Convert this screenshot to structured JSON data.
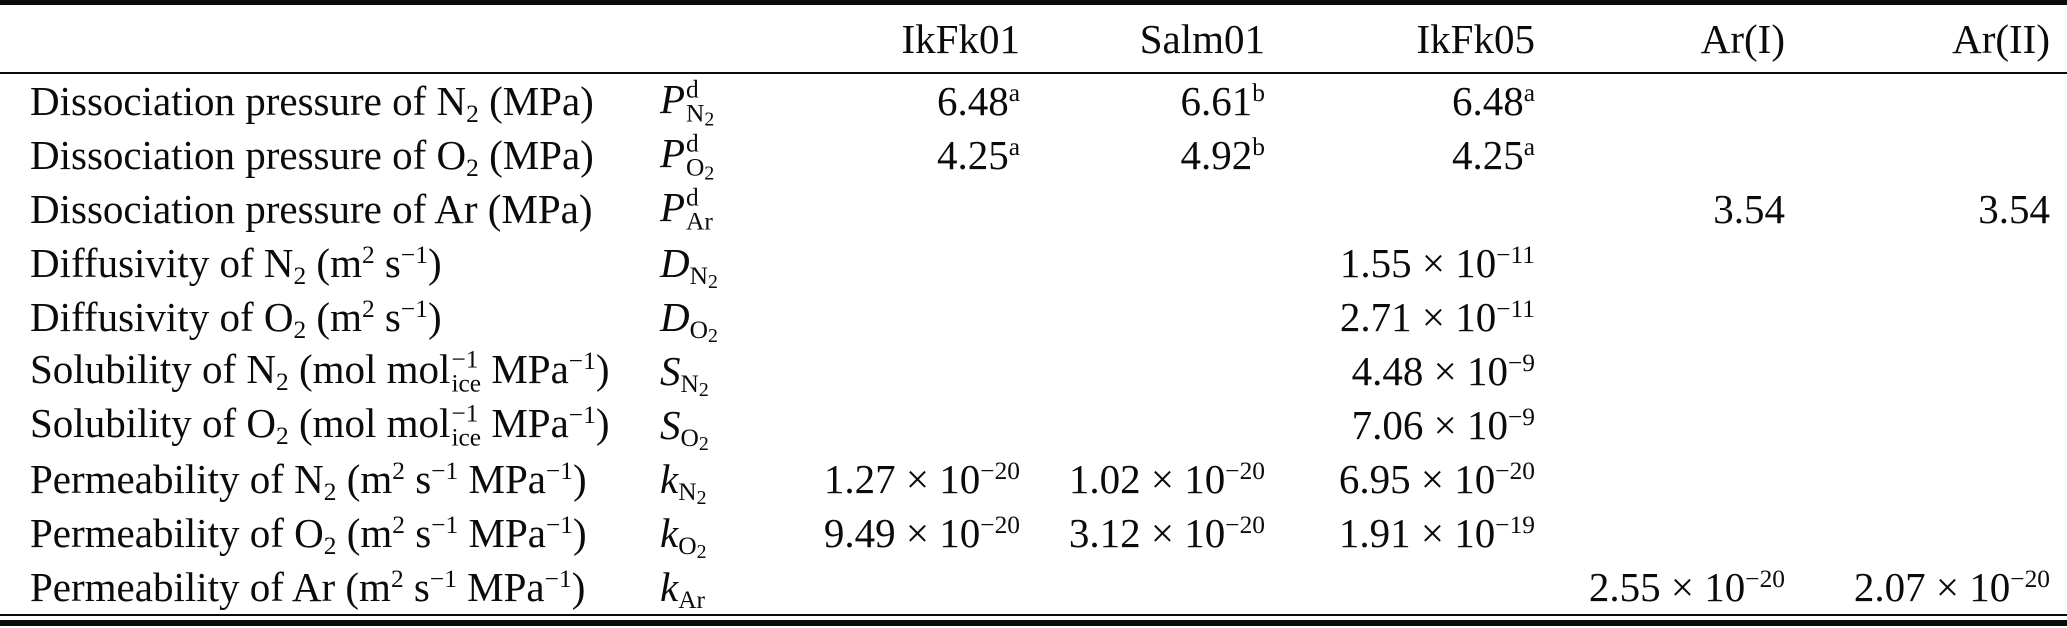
{
  "table": {
    "columns": [
      {
        "id": "parameter",
        "label": ""
      },
      {
        "id": "symbol",
        "label": ""
      },
      {
        "id": "IkFk01",
        "label": "IkFk01"
      },
      {
        "id": "Salm01",
        "label": "Salm01"
      },
      {
        "id": "IkFk05",
        "label": "IkFk05"
      },
      {
        "id": "ArI",
        "label": "Ar(I)"
      },
      {
        "id": "ArII",
        "label": "Ar(II)"
      }
    ],
    "rows": [
      {
        "label": [
          {
            "t": "Dissociation pressure of N"
          },
          {
            "sub": "2"
          },
          {
            "t": " (MPa)"
          }
        ],
        "symbol": {
          "base": "P",
          "sup": "d",
          "sub": "N",
          "subdigit": "2"
        },
        "values": {
          "IkFk01": [
            {
              "t": "6.48"
            },
            {
              "sup": "a"
            }
          ],
          "Salm01": [
            {
              "t": "6.61"
            },
            {
              "sup": "b"
            }
          ],
          "IkFk05": [
            {
              "t": "6.48"
            },
            {
              "sup": "a"
            }
          ]
        }
      },
      {
        "label": [
          {
            "t": "Dissociation pressure of O"
          },
          {
            "sub": "2"
          },
          {
            "t": " (MPa)"
          }
        ],
        "symbol": {
          "base": "P",
          "sup": "d",
          "sub": "O",
          "subdigit": "2"
        },
        "values": {
          "IkFk01": [
            {
              "t": "4.25"
            },
            {
              "sup": "a"
            }
          ],
          "Salm01": [
            {
              "t": "4.92"
            },
            {
              "sup": "b"
            }
          ],
          "IkFk05": [
            {
              "t": "4.25"
            },
            {
              "sup": "a"
            }
          ]
        }
      },
      {
        "label": [
          {
            "t": "Dissociation pressure of Ar (MPa)"
          }
        ],
        "symbol": {
          "base": "P",
          "sup": "d",
          "sub": "Ar"
        },
        "values": {
          "ArI": [
            {
              "t": "3.54"
            }
          ],
          "ArII": [
            {
              "t": "3.54"
            }
          ]
        }
      },
      {
        "label": [
          {
            "t": "Diffusivity of N"
          },
          {
            "sub": "2"
          },
          {
            "t": " (m"
          },
          {
            "sup": "2"
          },
          {
            "t": " s"
          },
          {
            "sup": "−1"
          },
          {
            "t": ")"
          }
        ],
        "symbol": {
          "base": "D",
          "sub": "N",
          "subdigit": "2"
        },
        "values": {
          "IkFk05": [
            {
              "t": "1.55 × 10"
            },
            {
              "sup": "−11"
            }
          ]
        }
      },
      {
        "label": [
          {
            "t": "Diffusivity of O"
          },
          {
            "sub": "2"
          },
          {
            "t": " (m"
          },
          {
            "sup": "2"
          },
          {
            "t": " s"
          },
          {
            "sup": "−1"
          },
          {
            "t": ")"
          }
        ],
        "symbol": {
          "base": "D",
          "sub": "O",
          "subdigit": "2"
        },
        "values": {
          "IkFk05": [
            {
              "t": "2.71 × 10"
            },
            {
              "sup": "−11"
            }
          ]
        }
      },
      {
        "label": [
          {
            "t": "Solubility of N"
          },
          {
            "sub": "2"
          },
          {
            "t": " (mol mol"
          },
          {
            "sup": "−1",
            "sub": "ice"
          },
          {
            "t": " MPa"
          },
          {
            "sup": "−1"
          },
          {
            "t": ")"
          }
        ],
        "symbol": {
          "base": "S",
          "sub": "N",
          "subdigit": "2"
        },
        "values": {
          "IkFk05": [
            {
              "t": "4.48 × 10"
            },
            {
              "sup": "−9"
            }
          ]
        }
      },
      {
        "label": [
          {
            "t": "Solubility of O"
          },
          {
            "sub": "2"
          },
          {
            "t": " (mol mol"
          },
          {
            "sup": "−1",
            "sub": "ice"
          },
          {
            "t": " MPa"
          },
          {
            "sup": "−1"
          },
          {
            "t": ")"
          }
        ],
        "symbol": {
          "base": "S",
          "sub": "O",
          "subdigit": "2"
        },
        "values": {
          "IkFk05": [
            {
              "t": "7.06 × 10"
            },
            {
              "sup": "−9"
            }
          ]
        }
      },
      {
        "label": [
          {
            "t": "Permeability of N"
          },
          {
            "sub": "2"
          },
          {
            "t": " (m"
          },
          {
            "sup": "2"
          },
          {
            "t": " s"
          },
          {
            "sup": "−1"
          },
          {
            "t": " MPa"
          },
          {
            "sup": "−1"
          },
          {
            "t": ")"
          }
        ],
        "symbol": {
          "base": "k",
          "sub": "N",
          "subdigit": "2"
        },
        "values": {
          "IkFk01": [
            {
              "t": "1.27 × 10"
            },
            {
              "sup": "−20"
            }
          ],
          "Salm01": [
            {
              "t": "1.02 × 10"
            },
            {
              "sup": "−20"
            }
          ],
          "IkFk05": [
            {
              "t": "6.95 × 10"
            },
            {
              "sup": "−20"
            }
          ]
        }
      },
      {
        "label": [
          {
            "t": "Permeability of O"
          },
          {
            "sub": "2"
          },
          {
            "t": " (m"
          },
          {
            "sup": "2"
          },
          {
            "t": " s"
          },
          {
            "sup": "−1"
          },
          {
            "t": " MPa"
          },
          {
            "sup": "−1"
          },
          {
            "t": ")"
          }
        ],
        "symbol": {
          "base": "k",
          "sub": "O",
          "subdigit": "2"
        },
        "values": {
          "IkFk01": [
            {
              "t": "9.49 × 10"
            },
            {
              "sup": "−20"
            }
          ],
          "Salm01": [
            {
              "t": "3.12 × 10"
            },
            {
              "sup": "−20"
            }
          ],
          "IkFk05": [
            {
              "t": "1.91 × 10"
            },
            {
              "sup": "−19"
            }
          ]
        }
      },
      {
        "label": [
          {
            "t": "Permeability of Ar (m"
          },
          {
            "sup": "2"
          },
          {
            "t": " s"
          },
          {
            "sup": "−1"
          },
          {
            "t": " MPa"
          },
          {
            "sup": "−1"
          },
          {
            "t": ")"
          }
        ],
        "symbol": {
          "base": "k",
          "sub": "Ar"
        },
        "values": {
          "ArI": [
            {
              "t": "2.55 × 10"
            },
            {
              "sup": "−20"
            }
          ],
          "ArII": [
            {
              "t": "2.07 × 10"
            },
            {
              "sup": "−20"
            }
          ]
        }
      }
    ]
  }
}
